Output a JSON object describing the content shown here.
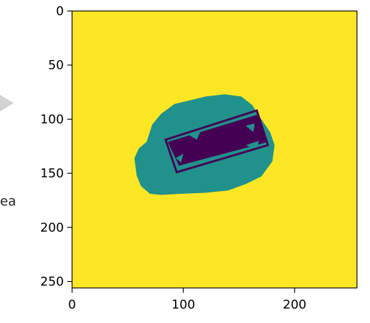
{
  "side_text": "ea",
  "colors": {
    "background_value": "#fde725",
    "buffer_region": "#21918c",
    "object_region": "#440154",
    "box_outline": "#440154",
    "side_arrow": "#d3d3d3"
  },
  "chart_data": {
    "type": "heatmap",
    "title": "",
    "xlabel": "",
    "ylabel": "",
    "xlim": [
      0,
      256
    ],
    "ylim": [
      256,
      0
    ],
    "y_inverted": true,
    "x_ticks": [
      0,
      100,
      200
    ],
    "y_ticks": [
      0,
      50,
      100,
      150,
      200,
      250
    ],
    "grid": false,
    "legend": "none",
    "colormap": "viridis",
    "regions": [
      {
        "value": "low",
        "color": "#440154",
        "shape": "rotated-rectangle-fill",
        "corners": [
          [
            86,
            121
          ],
          [
            166,
            96
          ],
          [
            176,
            121
          ],
          [
            96,
            143
          ]
        ]
      },
      {
        "value": "mid",
        "color": "#21918c",
        "shape": "blob",
        "outline": [
          [
            58,
            152
          ],
          [
            56,
            136
          ],
          [
            60,
            127
          ],
          [
            67,
            121
          ],
          [
            72,
            105
          ],
          [
            80,
            95
          ],
          [
            92,
            86
          ],
          [
            108,
            82
          ],
          [
            120,
            79
          ],
          [
            137,
            77
          ],
          [
            152,
            79
          ],
          [
            162,
            87
          ],
          [
            168,
            97
          ],
          [
            178,
            112
          ],
          [
            182,
            124
          ],
          [
            180,
            139
          ],
          [
            170,
            153
          ],
          [
            156,
            160
          ],
          [
            140,
            166
          ],
          [
            120,
            168
          ],
          [
            98,
            169
          ],
          [
            80,
            170
          ],
          [
            70,
            169
          ],
          [
            62,
            162
          ]
        ]
      }
    ],
    "overlays": [
      {
        "type": "rotated-rectangle-outline",
        "color": "#440154",
        "corners": [
          [
            84,
            119
          ],
          [
            166,
            92
          ],
          [
            176,
            124
          ],
          [
            94,
            149
          ]
        ]
      }
    ],
    "mid_value_holes": [
      [
        [
          104,
          114
        ],
        [
          116,
          110
        ],
        [
          112,
          119
        ]
      ],
      [
        [
          156,
          106
        ],
        [
          164,
          104
        ],
        [
          163,
          112
        ]
      ],
      [
        [
          156,
          124
        ],
        [
          168,
          120
        ],
        [
          166,
          128
        ]
      ],
      [
        [
          93,
          136
        ],
        [
          100,
          132
        ],
        [
          98,
          140
        ]
      ]
    ]
  }
}
